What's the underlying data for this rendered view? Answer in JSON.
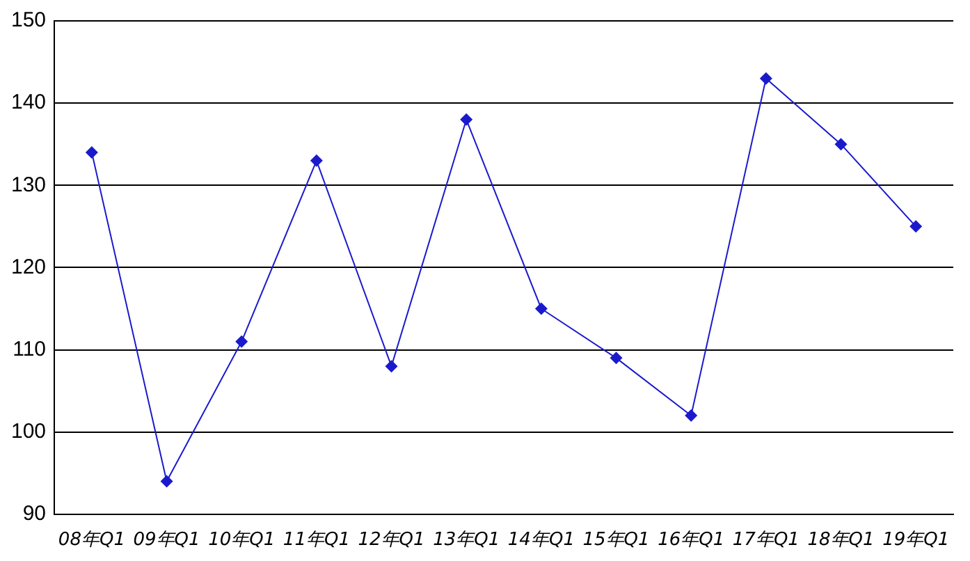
{
  "chart_data": {
    "type": "line",
    "categories": [
      "08年Q1",
      "09年Q1",
      "10年Q1",
      "11年Q1",
      "12年Q1",
      "13年Q1",
      "14年Q1",
      "15年Q1",
      "16年Q1",
      "17年Q1",
      "18年Q1",
      "19年Q1"
    ],
    "series": [
      {
        "color": "#1a1acc",
        "values": [
          134,
          94,
          111,
          133,
          108,
          138,
          115,
          109,
          102,
          143,
          135,
          125
        ]
      }
    ],
    "ylim": [
      90,
      150
    ],
    "yticks": [
      90,
      100,
      110,
      120,
      130,
      140,
      150
    ],
    "grid": "y",
    "marker": "diamond",
    "line_style": "solid",
    "legend": false
  }
}
